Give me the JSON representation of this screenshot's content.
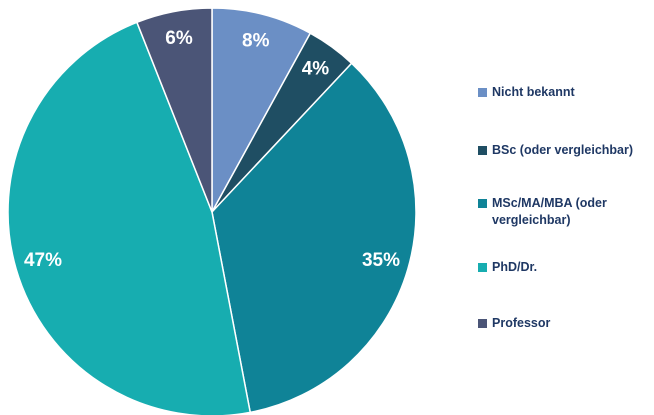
{
  "chart_data": {
    "type": "pie",
    "categories": [
      "Nicht bekannt",
      "BSc (oder vergleichbar)",
      "MSc/MA/MBA (oder vergleichbar)",
      "PhD/Dr.",
      "Professor"
    ],
    "values": [
      8,
      4,
      35,
      47,
      6
    ],
    "value_labels": [
      "8%",
      "4%",
      "35%",
      "47%",
      "6%"
    ],
    "colors": [
      "#6b8fc5",
      "#1f4e63",
      "#0f8397",
      "#17adb0",
      "#4b5577"
    ],
    "legend": "right"
  }
}
